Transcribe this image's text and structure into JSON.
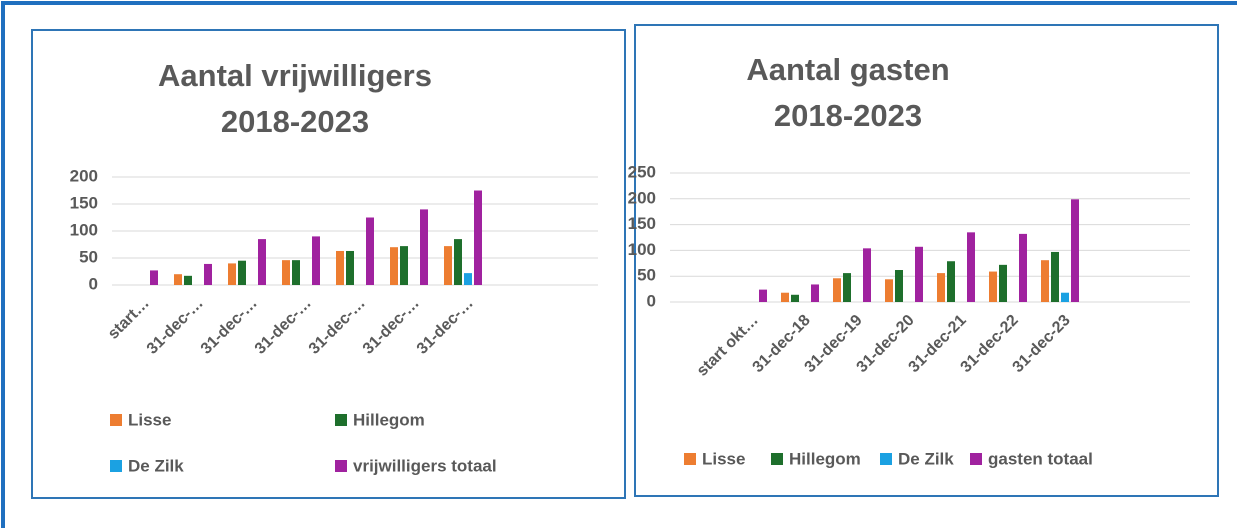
{
  "chart_data": [
    {
      "type": "bar",
      "title": [
        "Aantal vrijwilligers",
        "2018-2023"
      ],
      "categories": [
        "start…",
        "31-dec-…",
        "31-dec-…",
        "31-dec-…",
        "31-dec-…",
        "31-dec-…",
        "31-dec-…",
        null,
        null
      ],
      "series": [
        {
          "name": "Lisse",
          "color": "#ed7d31",
          "values": [
            null,
            20,
            40,
            46,
            63,
            70,
            72,
            null,
            null
          ]
        },
        {
          "name": "Hillegom",
          "color": "#1e6f2c",
          "values": [
            null,
            17,
            45,
            46,
            63,
            72,
            85,
            null,
            null
          ]
        },
        {
          "name": "De Zilk",
          "color": "#1ba1e2",
          "values": [
            null,
            null,
            null,
            null,
            null,
            null,
            22,
            null,
            null
          ]
        },
        {
          "name": "vrijwilligers totaal",
          "color": "#a0229f",
          "values": [
            27,
            39,
            85,
            90,
            125,
            140,
            175,
            null,
            null
          ]
        }
      ],
      "ylim": [
        0,
        200
      ],
      "yticks": [
        0,
        50,
        100,
        150,
        200
      ],
      "grid": true,
      "legend": "bottom"
    },
    {
      "type": "bar",
      "title": [
        "Aantal gasten",
        "2018-2023"
      ],
      "categories": [
        null,
        "start okt…",
        "31-dec-18",
        "31-dec-19",
        "31-dec-20",
        "31-dec-21",
        "31-dec-22",
        "31-dec-23",
        null,
        null
      ],
      "series": [
        {
          "name": "Lisse",
          "color": "#ed7d31",
          "values": [
            null,
            null,
            18,
            46,
            44,
            56,
            59,
            81,
            null,
            null
          ]
        },
        {
          "name": "Hillegom",
          "color": "#1e6f2c",
          "values": [
            null,
            null,
            14,
            56,
            62,
            79,
            72,
            97,
            null,
            null
          ]
        },
        {
          "name": "De Zilk",
          "color": "#1ba1e2",
          "values": [
            null,
            null,
            null,
            null,
            null,
            null,
            null,
            18,
            null,
            null
          ]
        },
        {
          "name": "gasten totaal",
          "color": "#a0229f",
          "values": [
            null,
            24,
            34,
            104,
            107,
            135,
            132,
            199,
            null,
            null
          ]
        }
      ],
      "ylim": [
        0,
        250
      ],
      "yticks": [
        0,
        50,
        100,
        150,
        200,
        250
      ],
      "grid": true,
      "legend": "bottom"
    }
  ]
}
